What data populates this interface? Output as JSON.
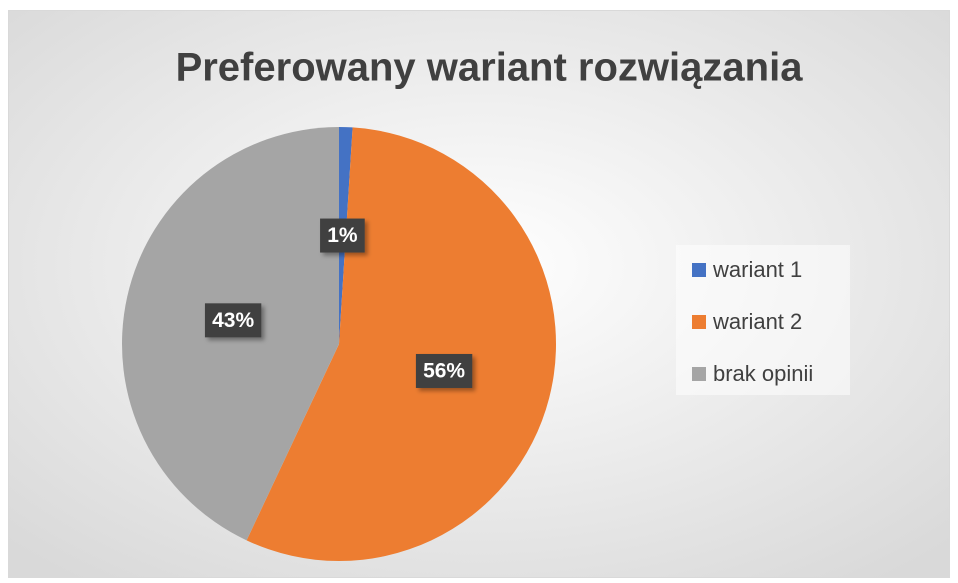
{
  "chart_data": {
    "type": "pie",
    "title": "Preferowany wariant rozwiązania",
    "categories": [
      "wariant 1",
      "wariant 2",
      "brak opinii"
    ],
    "values": [
      1,
      56,
      43
    ],
    "value_labels": [
      "1%",
      "56%",
      "43%"
    ],
    "colors": [
      "#4472c4",
      "#ed7d31",
      "#a5a5a5"
    ],
    "legend": "right"
  }
}
